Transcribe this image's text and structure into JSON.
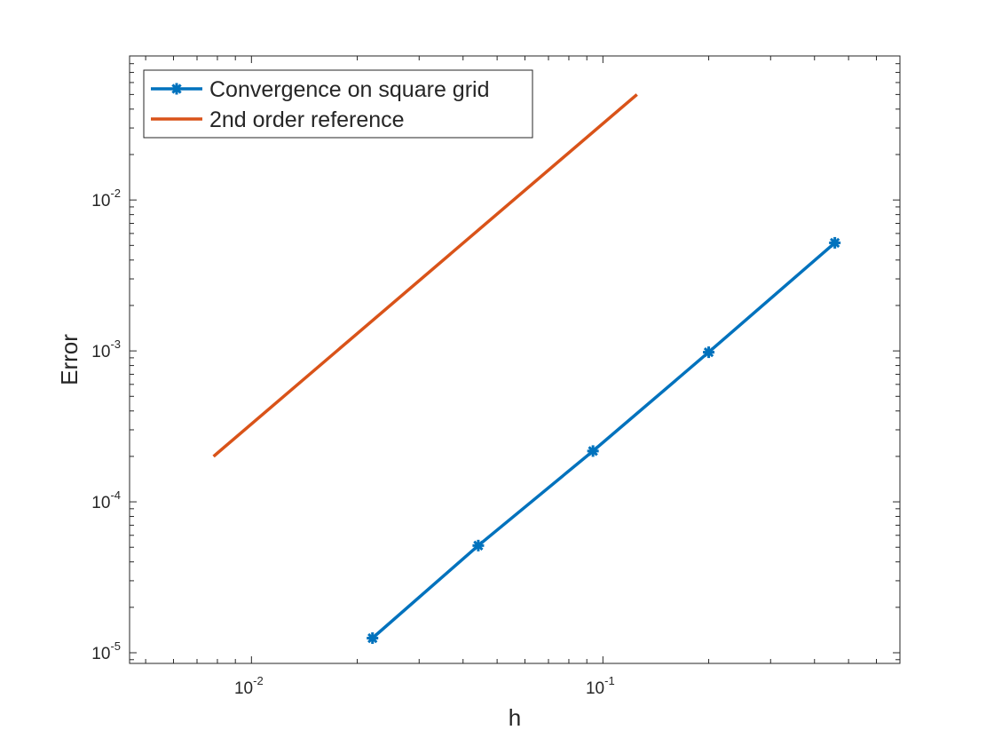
{
  "chart_data": {
    "type": "line",
    "xlabel": "h",
    "ylabel": "Error",
    "xscale": "log",
    "yscale": "log",
    "xlim": [
      0.0045,
      0.7
    ],
    "ylim": [
      8.5e-06,
      0.09
    ],
    "grid": false,
    "legend_position": "top-left",
    "x_ticks": [
      {
        "value": 0.01,
        "base": "10",
        "exp": "-2"
      },
      {
        "value": 0.1,
        "base": "10",
        "exp": "-1"
      }
    ],
    "y_ticks": [
      {
        "value": 1e-05,
        "base": "10",
        "exp": "-5"
      },
      {
        "value": 0.0001,
        "base": "10",
        "exp": "-4"
      },
      {
        "value": 0.001,
        "base": "10",
        "exp": "-3"
      },
      {
        "value": 0.01,
        "base": "10",
        "exp": "-2"
      }
    ],
    "series": [
      {
        "name": "Convergence on square grid",
        "color": "#0072BD",
        "marker": "asterisk",
        "x": [
          0.0221,
          0.0442,
          0.0937,
          0.2,
          0.457
        ],
        "y": [
          1.25e-05,
          5.13e-05,
          0.000217,
          0.00098,
          0.0052
        ]
      },
      {
        "name": "2nd order reference",
        "color": "#D95319",
        "marker": "none",
        "x": [
          0.0078,
          0.125
        ],
        "y": [
          0.0002,
          0.05
        ]
      }
    ]
  }
}
